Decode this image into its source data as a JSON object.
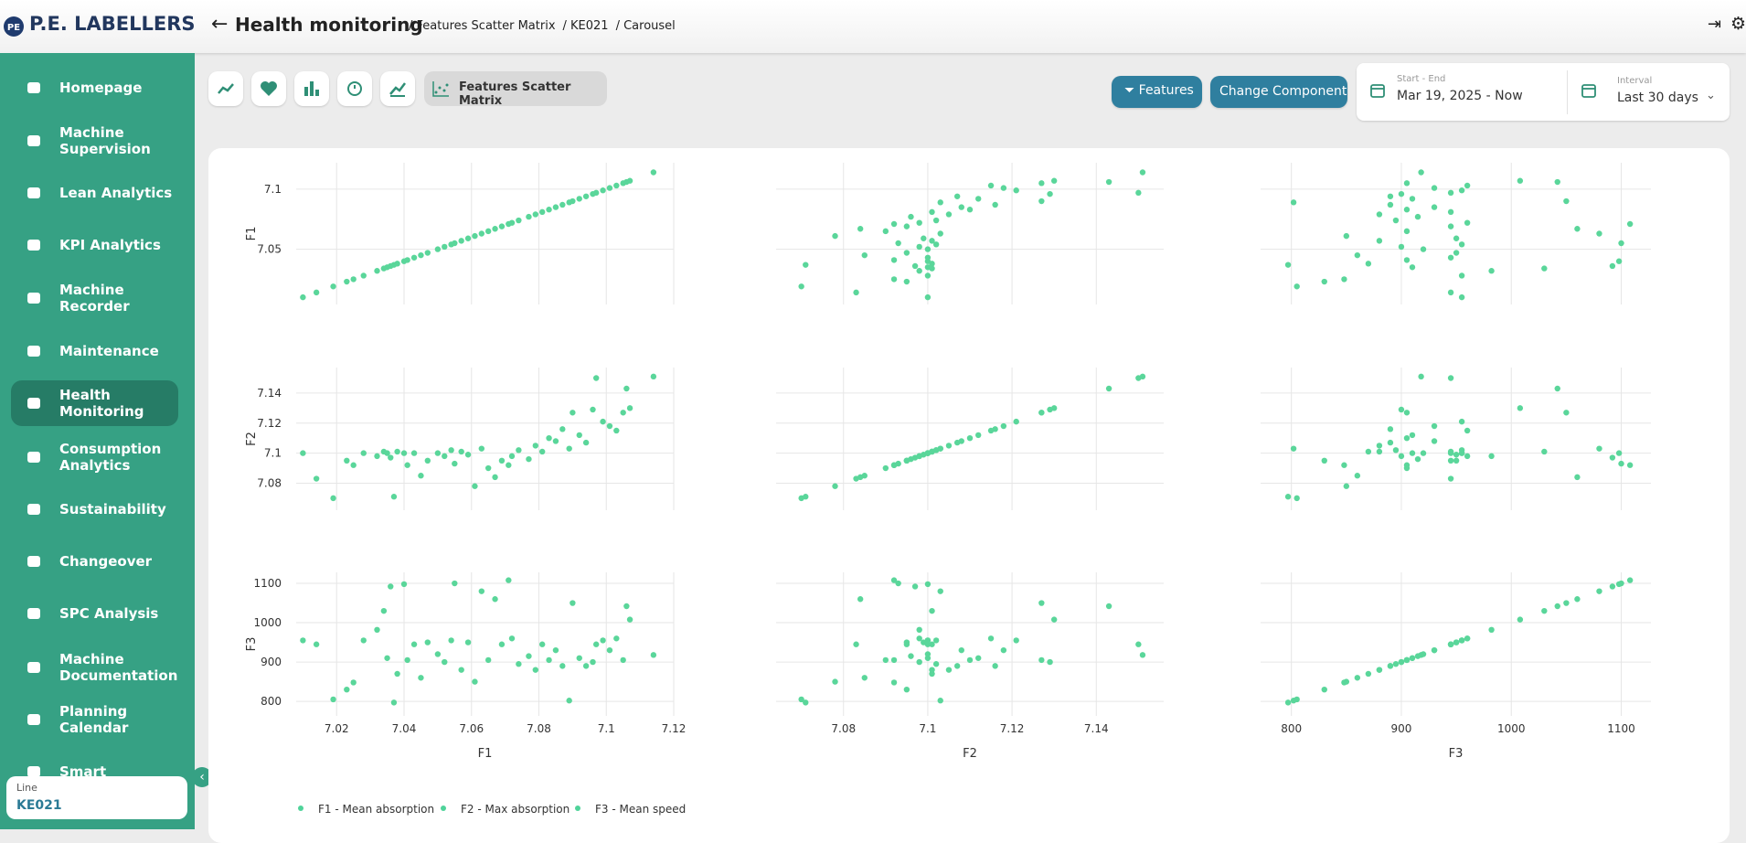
{
  "header": {
    "brand": "P.E. LABELLERS",
    "title": "Health monitoring",
    "breadcrumbs": [
      "/ Features Scatter Matrix",
      "/ KE021",
      "/ Carousel"
    ]
  },
  "sidebar": {
    "items": [
      [
        "Homepage"
      ],
      [
        "Machine",
        "Supervision"
      ],
      [
        "Lean Analytics"
      ],
      [
        "KPI Analytics"
      ],
      [
        "Machine",
        "Recorder"
      ],
      [
        "Maintenance"
      ],
      [
        "Health",
        "Monitoring"
      ],
      [
        "Consumption",
        "Analytics"
      ],
      [
        "Sustainability"
      ],
      [
        "Changeover"
      ],
      [
        "SPC Analysis"
      ],
      [
        "Machine",
        "Documentation"
      ],
      [
        "Planning",
        "Calendar"
      ],
      [
        "Smart"
      ]
    ],
    "line_label": "Line",
    "line_value": "KE021"
  },
  "toolbar": {
    "active_tab": "Features Scatter Matrix",
    "features_button": "Features",
    "component_button": "Change Component",
    "range_label": "Start - End",
    "range_value": "Mar 19, 2025 - Now",
    "interval_label": "Interval",
    "interval_value": "Last 30 days"
  },
  "chart_data": {
    "type": "scatter_matrix",
    "marker_color": "#5ad69a",
    "dimensions": [
      {
        "label": "F1",
        "name": "F1 - Mean absorption",
        "color": "#4fd39a",
        "xlim": [
          7.008,
          7.12
        ],
        "ylim": [
          7.004,
          7.122
        ],
        "xticks": [
          7.02,
          7.04,
          7.06,
          7.08,
          7.1,
          7.12
        ],
        "yticks": [
          7.05,
          7.1
        ],
        "values": [
          7.01,
          7.014,
          7.019,
          7.023,
          7.025,
          7.028,
          7.032,
          7.034,
          7.035,
          7.036,
          7.037,
          7.038,
          7.04,
          7.041,
          7.043,
          7.045,
          7.047,
          7.05,
          7.052,
          7.054,
          7.055,
          7.057,
          7.059,
          7.061,
          7.063,
          7.065,
          7.067,
          7.069,
          7.071,
          7.072,
          7.074,
          7.077,
          7.079,
          7.081,
          7.083,
          7.085,
          7.087,
          7.089,
          7.09,
          7.092,
          7.094,
          7.096,
          7.097,
          7.099,
          7.101,
          7.103,
          7.105,
          7.106,
          7.107,
          7.114
        ]
      },
      {
        "label": "F2",
        "name": "F2 - Max absorption",
        "color": "#4fd39a",
        "xlim": [
          7.064,
          7.156
        ],
        "ylim": [
          7.062,
          7.157
        ],
        "xticks": [
          7.08,
          7.1,
          7.12,
          7.14
        ],
        "yticks": [
          7.08,
          7.1,
          7.12,
          7.14
        ],
        "values": [
          7.1,
          7.083,
          7.07,
          7.095,
          7.092,
          7.1,
          7.098,
          7.101,
          7.1,
          7.097,
          7.071,
          7.101,
          7.1,
          7.092,
          7.1,
          7.085,
          7.095,
          7.1,
          7.098,
          7.102,
          7.093,
          7.101,
          7.099,
          7.078,
          7.103,
          7.09,
          7.084,
          7.095,
          7.092,
          7.098,
          7.102,
          7.096,
          7.105,
          7.101,
          7.11,
          7.108,
          7.116,
          7.103,
          7.127,
          7.112,
          7.107,
          7.129,
          7.15,
          7.121,
          7.118,
          7.115,
          7.127,
          7.143,
          7.13,
          7.151
        ]
      },
      {
        "label": "F3",
        "name": "F3 - Mean speed",
        "color": "#4fd39a",
        "xlim": [
          772,
          1127
        ],
        "ylim": [
          763,
          1128
        ],
        "xticks": [
          800,
          900,
          1000,
          1100
        ],
        "yticks": [
          800,
          900,
          1000,
          1100
        ],
        "values": [
          955,
          945,
          805,
          830,
          848,
          955,
          982,
          1030,
          910,
          1092,
          797,
          870,
          1098,
          905,
          945,
          860,
          950,
          920,
          900,
          955,
          1100,
          880,
          950,
          850,
          1080,
          905,
          1060,
          945,
          1108,
          960,
          895,
          915,
          880,
          945,
          905,
          930,
          890,
          802,
          1050,
          910,
          890,
          900,
          945,
          955,
          930,
          960,
          905,
          1042,
          1008,
          918
        ]
      }
    ]
  }
}
